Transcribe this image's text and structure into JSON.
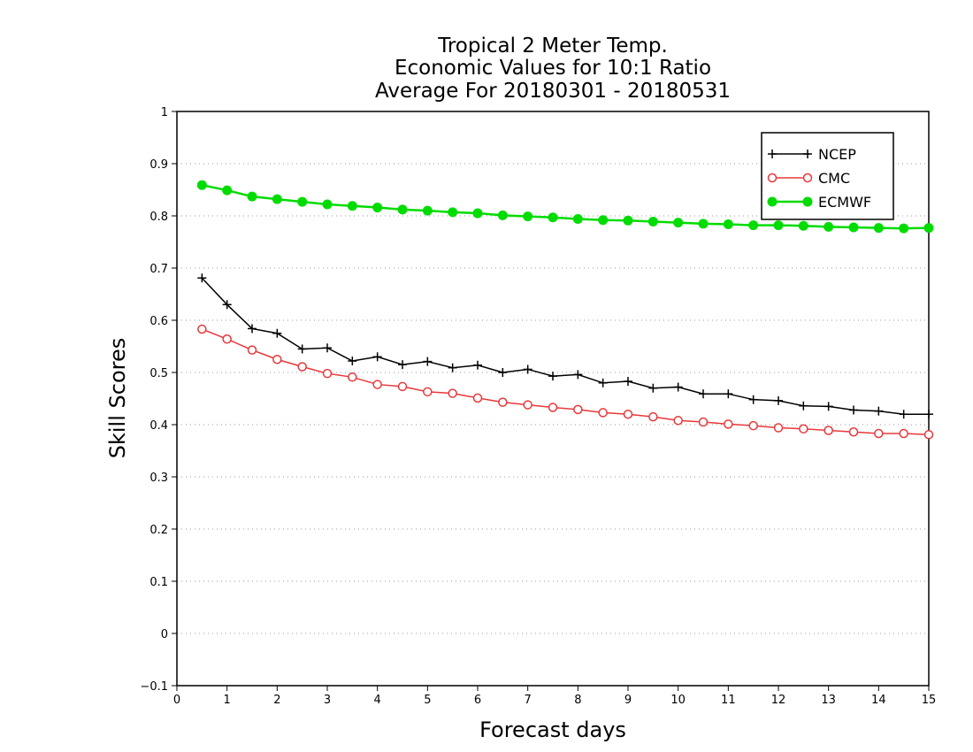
{
  "chart_data": {
    "type": "line",
    "title_lines": [
      "Tropical 2 Meter Temp.",
      "Economic Values for 10:1 Ratio",
      "Average For 20180301 - 20180531"
    ],
    "xlabel": "Forecast days",
    "ylabel": "Skill Scores",
    "xlim": [
      0,
      15
    ],
    "ylim": [
      -0.1,
      1
    ],
    "x_ticks": [
      "0",
      "1",
      "2",
      "3",
      "4",
      "5",
      "6",
      "7",
      "8",
      "9",
      "10",
      "11",
      "12",
      "13",
      "14",
      "15"
    ],
    "y_ticks": [
      "−0.1",
      "0",
      "0.1",
      "0.2",
      "0.3",
      "0.4",
      "0.5",
      "0.6",
      "0.7",
      "0.8",
      "0.9",
      "1"
    ],
    "grid": "horizontal dotted",
    "legend_position": "top-right",
    "x": [
      0.5,
      1,
      1.5,
      2,
      2.5,
      3,
      3.5,
      4,
      4.5,
      5,
      5.5,
      6,
      6.5,
      7,
      7.5,
      8,
      8.5,
      9,
      9.5,
      10,
      10.5,
      11,
      11.5,
      12,
      12.5,
      13,
      13.5,
      14,
      14.5,
      15
    ],
    "series": [
      {
        "name": "NCEP",
        "color": "#000000",
        "marker": "plus",
        "values": [
          0.681,
          0.63,
          0.584,
          0.575,
          0.545,
          0.547,
          0.522,
          0.53,
          0.515,
          0.521,
          0.509,
          0.514,
          0.5,
          0.506,
          0.493,
          0.496,
          0.48,
          0.483,
          0.47,
          0.472,
          0.459,
          0.459,
          0.448,
          0.446,
          0.436,
          0.435,
          0.428,
          0.426,
          0.42,
          0.42
        ]
      },
      {
        "name": "CMC",
        "color": "#e8383b",
        "marker": "open-circle",
        "values": [
          0.583,
          0.564,
          0.543,
          0.525,
          0.511,
          0.498,
          0.491,
          0.477,
          0.473,
          0.463,
          0.46,
          0.451,
          0.443,
          0.438,
          0.433,
          0.429,
          0.423,
          0.42,
          0.415,
          0.408,
          0.405,
          0.401,
          0.398,
          0.394,
          0.392,
          0.389,
          0.386,
          0.383,
          0.383,
          0.381
        ]
      },
      {
        "name": "ECMWF",
        "color": "#00dc00",
        "marker": "filled-circle",
        "values": [
          0.859,
          0.849,
          0.837,
          0.832,
          0.827,
          0.822,
          0.819,
          0.816,
          0.812,
          0.81,
          0.807,
          0.805,
          0.801,
          0.799,
          0.797,
          0.794,
          0.792,
          0.791,
          0.789,
          0.787,
          0.785,
          0.784,
          0.782,
          0.782,
          0.781,
          0.779,
          0.778,
          0.777,
          0.776,
          0.777
        ]
      }
    ]
  }
}
